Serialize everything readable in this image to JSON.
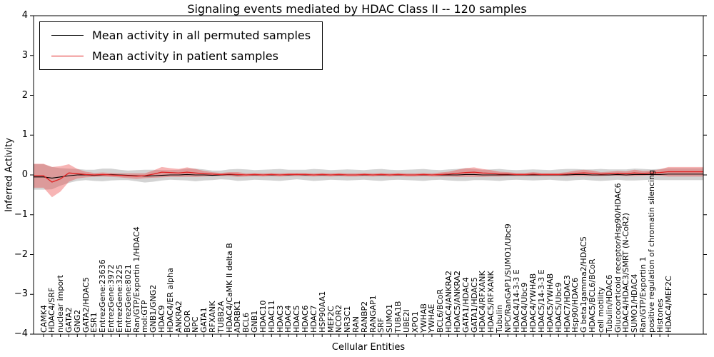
{
  "figure": {
    "background": "#ffffff"
  },
  "chart_data": {
    "type": "line",
    "title": "Signaling events mediated by HDAC Class II -- 120 samples",
    "xlabel": "Cellular Entities",
    "ylabel": "Inferred Activity",
    "ylim": [
      -4,
      4
    ],
    "yticks": [
      "-4",
      "-3",
      "-2",
      "-1",
      "0",
      "1",
      "2",
      "3",
      "4"
    ],
    "grid": false,
    "legend_position": "upper left",
    "categories": [
      "CAMK4",
      "HDAC4/SRF",
      "nuclear import",
      "GATA2",
      "GNG2",
      "GATA2/HDAC5",
      "ESR1",
      "EntrezGene:23636",
      "EntrezGene:3972",
      "EntrezGene:3225",
      "EntrezGene:8021",
      "Ran/GTP/Exportin 1/HDAC4",
      "mol:GTP",
      "GNB1/GNG2",
      "HDAC9",
      "HDAC4/ER alpha",
      "ANKRA2",
      "BCOR",
      "NPC",
      "GATA1",
      "RFXANK",
      "TUBB2A",
      "HDAC4/CaMK II delta B",
      "ADRBK1",
      "BCL6",
      "GNB1",
      "HDAC10",
      "HDAC11",
      "HDAC3",
      "HDAC4",
      "HDAC5",
      "HDAC6",
      "HDAC7",
      "HSP90AA1",
      "MEF2C",
      "NCOR2",
      "NR3C1",
      "RAN",
      "RANBP2",
      "RANGAP1",
      "SRF",
      "SUMO1",
      "TUBA1B",
      "UBE2I",
      "XPO1",
      "YWHAB",
      "YWHAE",
      "BCL6/BCoR",
      "HDAC4/ANKRA2",
      "HDAC5/ANKRA2",
      "GATA1/HDAC4",
      "GATA1/HDAC5",
      "HDAC4/RFXANK",
      "HDAC5/RFXANK",
      "Tubulin",
      "NPC/RanGAP1/SUMO1/Ubc9",
      "HDAC4/14-3-3 E",
      "HDAC4/Ubc9",
      "HDAC4/YWHAB",
      "HDAC5/14-3-3 E",
      "HDAC5/YWHAB",
      "HDAC5/Ubc9",
      "HDAC7/HDAC3",
      "Hsp90/HDAC6",
      "G beta1gamma2/HDAC5",
      "HDAC5/BCL6/BCoR",
      "cell motility",
      "Tubulin/HDAC6",
      "Glucocorticoid receptor/Hsp90/HDAC6",
      "HDAC4/HDAC3/SMRT (N-CoR2)",
      "SUMO1/HDAC4",
      "Ran/GTP/Exportin 1",
      "positive regulation of chromatin silencing",
      "Histones",
      "HDAC4/MEF2C"
    ],
    "series": [
      {
        "name": "Mean activity in all permuted samples",
        "color": "#000000",
        "band_color": "rgba(110,110,110,0.30)",
        "values": [
          -0.05,
          -0.08,
          -0.05,
          -0.02,
          0.0,
          0.0,
          -0.01,
          0.0,
          0.01,
          0.0,
          -0.01,
          -0.02,
          -0.03,
          -0.02,
          -0.01,
          0.0,
          0.0,
          0.01,
          0.0,
          0.0,
          -0.01,
          0.0,
          0.01,
          0.0,
          0.0,
          0.0,
          0.0,
          0.0,
          0.0,
          0.0,
          0.01,
          0.0,
          0.0,
          0.0,
          0.0,
          0.0,
          0.0,
          0.0,
          0.0,
          0.0,
          0.0,
          0.0,
          0.0,
          0.0,
          0.0,
          0.0,
          0.0,
          0.0,
          0.0,
          0.0,
          0.01,
          0.01,
          0.0,
          0.0,
          0.0,
          0.0,
          0.0,
          0.0,
          0.0,
          0.0,
          0.0,
          0.0,
          0.0,
          0.01,
          0.01,
          0.0,
          0.0,
          0.0,
          0.01,
          0.0,
          0.01,
          0.01,
          0.01,
          0.01,
          0.02
        ],
        "band_halfwidth": [
          0.32,
          0.28,
          0.22,
          0.18,
          0.15,
          0.13,
          0.14,
          0.16,
          0.15,
          0.13,
          0.12,
          0.14,
          0.16,
          0.15,
          0.13,
          0.12,
          0.13,
          0.15,
          0.16,
          0.14,
          0.12,
          0.11,
          0.13,
          0.15,
          0.14,
          0.12,
          0.13,
          0.14,
          0.15,
          0.13,
          0.12,
          0.13,
          0.15,
          0.14,
          0.12,
          0.13,
          0.14,
          0.13,
          0.12,
          0.14,
          0.15,
          0.13,
          0.12,
          0.13,
          0.14,
          0.15,
          0.13,
          0.12,
          0.14,
          0.15,
          0.16,
          0.14,
          0.13,
          0.14,
          0.15,
          0.13,
          0.12,
          0.13,
          0.14,
          0.13,
          0.12,
          0.14,
          0.15,
          0.14,
          0.13,
          0.14,
          0.15,
          0.14,
          0.13,
          0.14,
          0.15,
          0.14,
          0.13,
          0.14,
          0.15
        ]
      },
      {
        "name": "Mean activity in patient samples",
        "color": "#e02020",
        "band_color": "rgba(235,70,70,0.40)",
        "values": [
          -0.02,
          -0.18,
          -0.1,
          0.05,
          0.03,
          0.01,
          0.0,
          0.01,
          0.0,
          -0.01,
          -0.02,
          -0.03,
          -0.02,
          0.02,
          0.07,
          0.06,
          0.05,
          0.07,
          0.05,
          0.03,
          0.02,
          0.01,
          0.02,
          0.01,
          0.0,
          0.01,
          0.0,
          0.01,
          0.0,
          0.01,
          0.01,
          0.01,
          0.0,
          0.01,
          0.0,
          0.01,
          0.0,
          0.0,
          0.01,
          0.0,
          0.01,
          0.0,
          0.01,
          0.0,
          0.0,
          0.01,
          0.0,
          0.01,
          0.02,
          0.04,
          0.06,
          0.07,
          0.05,
          0.04,
          0.02,
          0.02,
          0.01,
          0.01,
          0.02,
          0.01,
          0.01,
          0.01,
          0.02,
          0.04,
          0.05,
          0.04,
          0.02,
          0.03,
          0.04,
          0.03,
          0.05,
          0.04,
          0.05,
          0.06,
          0.08
        ],
        "band_halfwidth": [
          0.3,
          0.38,
          0.32,
          0.22,
          0.12,
          0.07,
          0.05,
          0.05,
          0.05,
          0.05,
          0.06,
          0.07,
          0.06,
          0.09,
          0.13,
          0.11,
          0.1,
          0.12,
          0.1,
          0.07,
          0.05,
          0.04,
          0.05,
          0.06,
          0.04,
          0.04,
          0.04,
          0.04,
          0.04,
          0.04,
          0.04,
          0.04,
          0.04,
          0.04,
          0.04,
          0.04,
          0.04,
          0.04,
          0.04,
          0.04,
          0.04,
          0.04,
          0.04,
          0.04,
          0.04,
          0.04,
          0.04,
          0.05,
          0.06,
          0.09,
          0.11,
          0.12,
          0.1,
          0.08,
          0.06,
          0.05,
          0.04,
          0.04,
          0.05,
          0.04,
          0.04,
          0.04,
          0.05,
          0.07,
          0.08,
          0.07,
          0.05,
          0.05,
          0.06,
          0.06,
          0.08,
          0.06,
          0.06,
          0.08,
          0.12
        ]
      }
    ]
  }
}
